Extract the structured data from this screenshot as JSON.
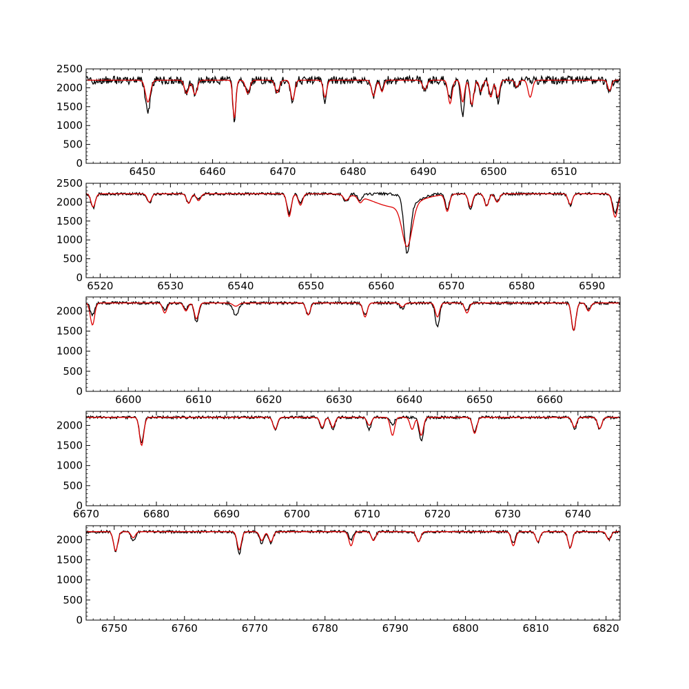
{
  "colors": {
    "observed": "#000000",
    "model": "#dd0000",
    "axes": "#000000",
    "background": "#ffffff"
  },
  "chart_data": [
    {
      "type": "line",
      "xlim": [
        6442,
        6518
      ],
      "ylim": [
        0,
        2500
      ],
      "xticks": [
        6450,
        6460,
        6470,
        6480,
        6490,
        6500,
        6510
      ],
      "yticks": [
        0,
        500,
        1000,
        1500,
        2000,
        2500
      ],
      "continuum": 2200,
      "noise": 110,
      "grid": false,
      "legend": "none",
      "series": [
        {
          "role": "observed",
          "color": "#000000",
          "lines": [
            [
              6450.8,
              800,
              0.35
            ],
            [
              6456.3,
              300,
              0.3
            ],
            [
              6457.5,
              330,
              0.3
            ],
            [
              6463.1,
              1050,
              0.22
            ],
            [
              6465.0,
              300,
              0.3
            ],
            [
              6469.2,
              350,
              0.3
            ],
            [
              6471.4,
              550,
              0.28
            ],
            [
              6476.0,
              520,
              0.25
            ],
            [
              6482.9,
              430,
              0.28
            ],
            [
              6484.1,
              300,
              0.25
            ],
            [
              6490.2,
              280,
              0.3
            ],
            [
              6493.8,
              500,
              0.28
            ],
            [
              6495.6,
              950,
              0.25
            ],
            [
              6496.9,
              650,
              0.28
            ],
            [
              6498.2,
              300,
              0.25
            ],
            [
              6499.6,
              480,
              0.25
            ],
            [
              6500.6,
              550,
              0.25
            ],
            [
              6503.3,
              250,
              0.25
            ],
            [
              6516.5,
              300,
              0.25
            ]
          ]
        },
        {
          "role": "model",
          "color": "#dd0000",
          "lines": [
            [
              6450.8,
              580,
              0.35
            ],
            [
              6456.3,
              350,
              0.3
            ],
            [
              6457.5,
              380,
              0.3
            ],
            [
              6463.1,
              1000,
              0.22
            ],
            [
              6465.0,
              350,
              0.3
            ],
            [
              6469.2,
              330,
              0.3
            ],
            [
              6471.4,
              520,
              0.28
            ],
            [
              6476.0,
              450,
              0.25
            ],
            [
              6482.9,
              420,
              0.28
            ],
            [
              6484.1,
              300,
              0.25
            ],
            [
              6490.2,
              250,
              0.3
            ],
            [
              6493.8,
              620,
              0.28
            ],
            [
              6495.6,
              580,
              0.25
            ],
            [
              6496.9,
              650,
              0.28
            ],
            [
              6498.2,
              300,
              0.25
            ],
            [
              6499.6,
              450,
              0.25
            ],
            [
              6500.6,
              450,
              0.25
            ],
            [
              6503.3,
              180,
              0.25
            ],
            [
              6505.2,
              450,
              0.3
            ],
            [
              6516.5,
              280,
              0.25
            ]
          ]
        }
      ]
    },
    {
      "type": "line",
      "xlim": [
        6518,
        6594
      ],
      "ylim": [
        0,
        2500
      ],
      "xticks": [
        6520,
        6530,
        6540,
        6550,
        6560,
        6570,
        6580,
        6590
      ],
      "yticks": [
        0,
        500,
        1000,
        1500,
        2000,
        2500
      ],
      "continuum": 2220,
      "noise": 35,
      "grid": false,
      "legend": "none",
      "series": [
        {
          "role": "observed",
          "color": "#000000",
          "lines": [
            [
              6519.0,
              380,
              0.3
            ],
            [
              6527.0,
              250,
              0.3
            ],
            [
              6532.6,
              250,
              0.3
            ],
            [
              6534.0,
              150,
              0.3
            ],
            [
              6546.9,
              530,
              0.3
            ],
            [
              6548.5,
              250,
              0.3
            ],
            [
              6555.0,
              200,
              0.35
            ],
            [
              6557.0,
              200,
              0.3
            ],
            [
              6563.7,
              1450,
              0.45
            ],
            [
              6564.8,
              200,
              1.2
            ],
            [
              6569.4,
              400,
              0.3
            ],
            [
              6572.7,
              400,
              0.3
            ],
            [
              6575.0,
              300,
              0.3
            ],
            [
              6576.5,
              200,
              0.3
            ],
            [
              6586.9,
              300,
              0.3
            ],
            [
              6593.3,
              500,
              0.35
            ]
          ]
        },
        {
          "role": "model",
          "color": "#dd0000",
          "lines": [
            [
              6519.0,
              350,
              0.3
            ],
            [
              6527.0,
              220,
              0.3
            ],
            [
              6532.6,
              250,
              0.3
            ],
            [
              6534.0,
              180,
              0.3
            ],
            [
              6546.9,
              600,
              0.3
            ],
            [
              6548.5,
              300,
              0.3
            ],
            [
              6555.0,
              150,
              0.35
            ],
            [
              6557.0,
              150,
              0.3
            ],
            [
              6563.7,
              1100,
              0.7
            ],
            [
              6562.0,
              350,
              3.0
            ],
            [
              6569.4,
              450,
              0.3
            ],
            [
              6572.7,
              350,
              0.3
            ],
            [
              6575.0,
              320,
              0.3
            ],
            [
              6576.5,
              220,
              0.3
            ],
            [
              6586.9,
              280,
              0.3
            ],
            [
              6593.3,
              620,
              0.35
            ]
          ]
        }
      ]
    },
    {
      "type": "line",
      "xlim": [
        6594,
        6670
      ],
      "ylim": [
        0,
        2350
      ],
      "xticks": [
        6600,
        6610,
        6620,
        6630,
        6640,
        6650,
        6660
      ],
      "yticks": [
        0,
        500,
        1000,
        1500,
        2000
      ],
      "continuum": 2200,
      "noise": 35,
      "grid": false,
      "legend": "none",
      "series": [
        {
          "role": "observed",
          "color": "#000000",
          "lines": [
            [
              6594.9,
              300,
              0.3
            ],
            [
              6605.2,
              180,
              0.3
            ],
            [
              6608.2,
              150,
              0.3
            ],
            [
              6609.7,
              480,
              0.3
            ],
            [
              6615.3,
              300,
              0.4
            ],
            [
              6625.6,
              300,
              0.3
            ],
            [
              6633.7,
              300,
              0.3
            ],
            [
              6639.0,
              150,
              0.3
            ],
            [
              6644.0,
              600,
              0.3
            ],
            [
              6648.2,
              200,
              0.3
            ],
            [
              6663.4,
              700,
              0.3
            ],
            [
              6665.5,
              150,
              0.3
            ]
          ]
        },
        {
          "role": "model",
          "color": "#dd0000",
          "lines": [
            [
              6594.9,
              550,
              0.3
            ],
            [
              6605.2,
              250,
              0.3
            ],
            [
              6608.2,
              200,
              0.3
            ],
            [
              6609.7,
              400,
              0.3
            ],
            [
              6615.3,
              80,
              0.4
            ],
            [
              6625.6,
              300,
              0.3
            ],
            [
              6633.7,
              350,
              0.3
            ],
            [
              6639.0,
              100,
              0.3
            ],
            [
              6644.0,
              350,
              0.3
            ],
            [
              6648.2,
              250,
              0.3
            ],
            [
              6663.4,
              680,
              0.3
            ],
            [
              6665.5,
              200,
              0.3
            ]
          ]
        }
      ]
    },
    {
      "type": "line",
      "xlim": [
        6670,
        6746
      ],
      "ylim": [
        0,
        2350
      ],
      "xticks": [
        6670,
        6680,
        6690,
        6700,
        6710,
        6720,
        6730,
        6740
      ],
      "yticks": [
        0,
        500,
        1000,
        1500,
        2000
      ],
      "continuum": 2200,
      "noise": 35,
      "grid": false,
      "legend": "none",
      "series": [
        {
          "role": "observed",
          "color": "#000000",
          "lines": [
            [
              6677.9,
              650,
              0.3
            ],
            [
              6696.9,
              300,
              0.3
            ],
            [
              6703.6,
              280,
              0.3
            ],
            [
              6705.1,
              300,
              0.3
            ],
            [
              6710.3,
              300,
              0.3
            ],
            [
              6713.6,
              180,
              0.3
            ],
            [
              6717.7,
              600,
              0.3
            ],
            [
              6725.3,
              350,
              0.3
            ],
            [
              6739.5,
              300,
              0.3
            ],
            [
              6743.1,
              300,
              0.3
            ]
          ]
        },
        {
          "role": "model",
          "color": "#dd0000",
          "lines": [
            [
              6677.9,
              700,
              0.3
            ],
            [
              6696.9,
              300,
              0.3
            ],
            [
              6703.6,
              250,
              0.3
            ],
            [
              6705.1,
              250,
              0.3
            ],
            [
              6710.3,
              200,
              0.3
            ],
            [
              6713.6,
              450,
              0.3
            ],
            [
              6716.4,
              300,
              0.3
            ],
            [
              6717.7,
              450,
              0.3
            ],
            [
              6725.3,
              400,
              0.3
            ],
            [
              6739.5,
              250,
              0.3
            ],
            [
              6743.1,
              280,
              0.3
            ]
          ]
        }
      ]
    },
    {
      "type": "line",
      "xlim": [
        6746,
        6822
      ],
      "ylim": [
        0,
        2350
      ],
      "xticks": [
        6750,
        6760,
        6770,
        6780,
        6790,
        6800,
        6810,
        6820
      ],
      "yticks": [
        0,
        500,
        1000,
        1500,
        2000
      ],
      "continuum": 2200,
      "noise": 35,
      "grid": false,
      "legend": "none",
      "series": [
        {
          "role": "observed",
          "color": "#000000",
          "lines": [
            [
              6750.2,
              500,
              0.3
            ],
            [
              6752.7,
              250,
              0.3
            ],
            [
              6767.8,
              550,
              0.3
            ],
            [
              6771.0,
              300,
              0.3
            ],
            [
              6772.3,
              300,
              0.3
            ],
            [
              6783.7,
              200,
              0.3
            ],
            [
              6786.9,
              200,
              0.3
            ],
            [
              6793.3,
              250,
              0.3
            ],
            [
              6806.8,
              300,
              0.3
            ],
            [
              6810.3,
              250,
              0.3
            ],
            [
              6814.9,
              400,
              0.3
            ],
            [
              6820.4,
              200,
              0.3
            ]
          ]
        },
        {
          "role": "model",
          "color": "#dd0000",
          "lines": [
            [
              6750.2,
              480,
              0.3
            ],
            [
              6752.7,
              150,
              0.3
            ],
            [
              6767.8,
              450,
              0.3
            ],
            [
              6771.0,
              220,
              0.3
            ],
            [
              6772.3,
              250,
              0.3
            ],
            [
              6783.7,
              350,
              0.3
            ],
            [
              6786.9,
              220,
              0.3
            ],
            [
              6793.3,
              250,
              0.3
            ],
            [
              6806.8,
              350,
              0.3
            ],
            [
              6810.3,
              250,
              0.3
            ],
            [
              6814.9,
              400,
              0.3
            ],
            [
              6820.4,
              200,
              0.3
            ]
          ]
        }
      ]
    }
  ]
}
